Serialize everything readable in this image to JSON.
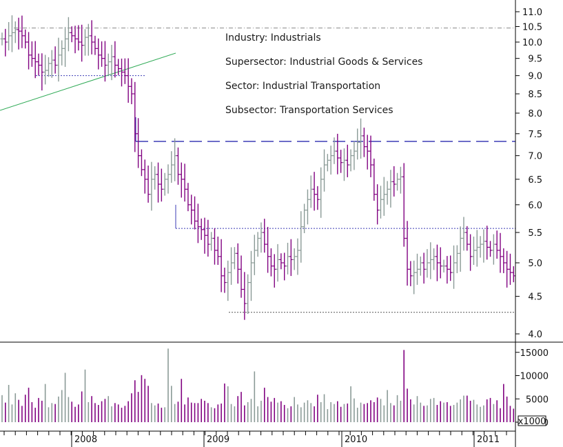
{
  "info_lines": {
    "industry": "Industry: Industrials",
    "supersector": "Supersector: Industrial Goods & Services",
    "sector": "Sector: Industrial Transportation",
    "subsector": "Subsector: Transportation Services"
  },
  "colors": {
    "bar_up": "#8a9a96",
    "bar_down": "#800080",
    "trendline": "#2eaa55",
    "level_line": "#3b3bb5",
    "support_line": "#555555",
    "axis": "#000000"
  },
  "chart_data": [
    {
      "type": "ohlc",
      "price_scale": "log",
      "ylim": [
        3.9,
        11.2
      ],
      "price_ticks": [
        "4.0",
        "4.5",
        "5.0",
        "5.5",
        "6.0",
        "6.5",
        "7.0",
        "7.5",
        "8.0",
        "8.5",
        "9.0",
        "9.5",
        "10.0",
        "10.5",
        "11.0"
      ],
      "x_labels": [
        "2008",
        "2009",
        "2010",
        "2011"
      ],
      "x_range": [
        "2007-07",
        "2011-03"
      ],
      "series": [
        {
          "closes": [
            10.1,
            10.0,
            10.2,
            10.3,
            10.4,
            10.35,
            10.2,
            10.0,
            9.6,
            9.5,
            9.4,
            9.3,
            9.1,
            9.15,
            9.35,
            9.45,
            9.3,
            9.6,
            9.8,
            10.1,
            10.3,
            10.2,
            10.1,
            10.0,
            9.9,
            10.15,
            10.2,
            10.0,
            9.8,
            9.6,
            9.5,
            9.3,
            9.4,
            9.55,
            9.3,
            9.2,
            9.1,
            9.0,
            8.7,
            8.5,
            7.5,
            7.0,
            6.7,
            6.5,
            6.2,
            6.5,
            6.6,
            6.4,
            6.3,
            6.5,
            6.6,
            6.8,
            7.0,
            6.6,
            6.5,
            6.3,
            6.0,
            5.9,
            5.7,
            5.6,
            5.55,
            5.45,
            5.3,
            5.4,
            5.2,
            5.1,
            4.8,
            4.7,
            4.85,
            5.0,
            5.15,
            4.9,
            4.6,
            4.4,
            4.7,
            5.0,
            5.2,
            5.4,
            5.5,
            5.3,
            5.1,
            4.95,
            4.9,
            5.05,
            5.0,
            4.95,
            5.1,
            5.05,
            5.1,
            5.2,
            5.6,
            5.9,
            6.1,
            6.3,
            6.2,
            6.1,
            6.5,
            6.8,
            6.9,
            7.0,
            7.1,
            6.95,
            6.85,
            6.9,
            6.8,
            7.0,
            7.1,
            7.3,
            7.45,
            7.2,
            7.1,
            6.8,
            6.2,
            5.9,
            6.1,
            6.2,
            6.3,
            6.45,
            6.4,
            6.5,
            6.55,
            5.4,
            4.9,
            4.8,
            4.85,
            4.9,
            5.0,
            4.9,
            5.0,
            5.05,
            5.1,
            5.0,
            4.95,
            4.95,
            4.9,
            4.85,
            5.0,
            5.15,
            5.4,
            5.5,
            5.3,
            5.1,
            5.2,
            5.25,
            5.3,
            5.35,
            5.25,
            5.2,
            5.3,
            5.2,
            5.1,
            5.0,
            4.9,
            4.85,
            4.8
          ]
        }
      ],
      "levels": [
        {
          "name": "resistance-high",
          "value": 10.45
        },
        {
          "name": "support-2008",
          "value": 9.0
        },
        {
          "name": "dashed-level",
          "value": 7.32
        },
        {
          "name": "support-mid",
          "value": 5.57
        },
        {
          "name": "support-low",
          "value": 4.28
        }
      ]
    },
    {
      "type": "bar",
      "volume_unit_label": "x1000",
      "ylim": [
        0,
        16000
      ],
      "volume_ticks": [
        "0",
        "5000",
        "10000",
        "15000"
      ],
      "values": [
        5800,
        4200,
        8000,
        3800,
        6200,
        4800,
        3500,
        5900,
        7400,
        4300,
        3100,
        5200,
        4600,
        8200,
        3200,
        4100,
        3900,
        5500,
        6900,
        10600,
        5400,
        4400,
        3300,
        3800,
        6600,
        11300,
        4300,
        5600,
        4100,
        3700,
        4500,
        5000,
        5600,
        3400,
        4100,
        3800,
        3100,
        3500,
        4500,
        6200,
        9000,
        6500,
        10100,
        9300,
        7800,
        4100,
        3600,
        4000,
        3100,
        3200,
        15800,
        7800,
        3900,
        4400,
        9300,
        3800,
        5300,
        4200,
        4100,
        4100,
        5000,
        4600,
        4100,
        3200,
        3000,
        3800,
        4000,
        8300,
        7700,
        3900,
        3400,
        5600,
        6500,
        3600,
        4300,
        5000,
        10900,
        3400,
        4600,
        7400,
        5400,
        4400,
        5200,
        4200,
        4500,
        3700,
        3000,
        3400,
        5400,
        3800,
        3200,
        4200,
        4700,
        4100,
        3400,
        5900,
        4300,
        6000,
        2800,
        4300,
        3900,
        4500,
        3300,
        3900,
        4000,
        7700,
        5100,
        3100,
        4200,
        3900,
        4100,
        4700,
        4300,
        5300,
        5000,
        3600,
        6900,
        4100,
        3600,
        5800,
        4600,
        15500,
        7200,
        4900,
        3800,
        5600,
        4200,
        3500,
        3600,
        5000,
        5200,
        3700,
        4500,
        4200,
        4300,
        3500,
        3700,
        4200,
        4900,
        5700,
        5700,
        4600,
        4800,
        3800,
        3300,
        3600,
        4900,
        5200,
        3900,
        4700,
        3000,
        8200,
        5500,
        3500,
        2900
      ]
    }
  ]
}
